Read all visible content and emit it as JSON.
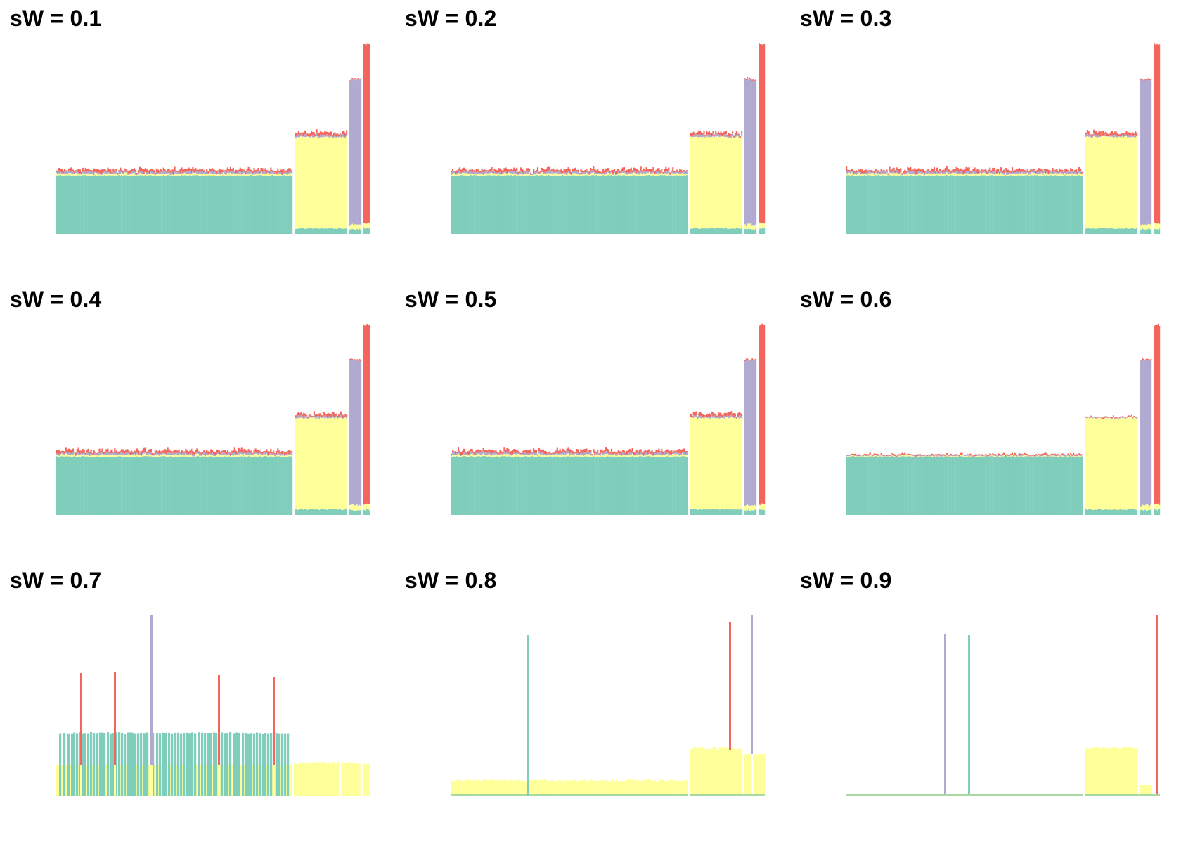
{
  "colors": {
    "teal": "#7fcdbb",
    "yellow": "#ffff99",
    "purple": "#b1aad0",
    "red": "#f4665c",
    "baseline_green": "#a8d9a0"
  },
  "chart_data": [
    {
      "type": "bar",
      "title": "sW = 0.1",
      "layout": "structure"
    },
    {
      "type": "bar",
      "title": "sW = 0.2",
      "layout": "structure"
    },
    {
      "type": "bar",
      "title": "sW = 0.3",
      "layout": "structure"
    },
    {
      "type": "bar",
      "title": "sW = 0.4",
      "layout": "structure"
    },
    {
      "type": "bar",
      "title": "sW = 0.5",
      "layout": "structure"
    },
    {
      "type": "bar",
      "title": "sW = 0.6",
      "layout": "structure"
    },
    {
      "type": "bar",
      "title": "sW = 0.7",
      "layout": "sparse-a"
    },
    {
      "type": "bar",
      "title": "sW = 0.8",
      "layout": "sparse-b"
    },
    {
      "type": "bar",
      "title": "sW = 0.9",
      "layout": "sparse-c"
    }
  ]
}
